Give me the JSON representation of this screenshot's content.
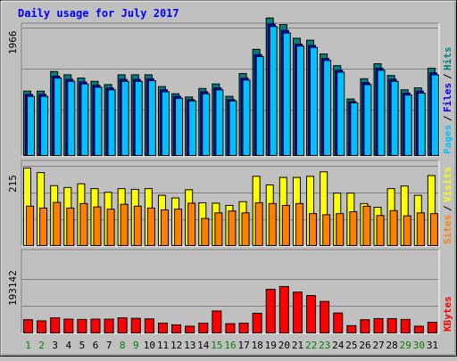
{
  "chart_data": {
    "type": "bar",
    "title": "Daily usage for July 2017",
    "days": [
      "1",
      "2",
      "3",
      "4",
      "5",
      "6",
      "7",
      "8",
      "9",
      "10",
      "11",
      "12",
      "13",
      "14",
      "15",
      "16",
      "17",
      "18",
      "19",
      "20",
      "21",
      "22",
      "23",
      "24",
      "25",
      "26",
      "27",
      "28",
      "29",
      "30",
      "31"
    ],
    "weekend_days": [
      "1",
      "2",
      "8",
      "9",
      "15",
      "16",
      "22",
      "23",
      "29",
      "30"
    ],
    "panels": [
      {
        "id": "hits",
        "scale_label": "1966",
        "scale_value": 1966,
        "legend": [
          {
            "text": "Pages",
            "color": "#00c0ff"
          },
          {
            "text": "Files",
            "color": "#0000ff"
          },
          {
            "text": "Hits",
            "color": "#008080"
          }
        ],
        "series": [
          {
            "name": "Hits",
            "color": "#008080",
            "values": [
              1000,
              1000,
              1300,
              1250,
              1200,
              1150,
              1100,
              1250,
              1250,
              1250,
              1070,
              960,
              910,
              1040,
              1110,
              920,
              1270,
              1640,
              2120,
              2020,
              1810,
              1780,
              1570,
              1390,
              880,
              1190,
              1420,
              1240,
              1020,
              1050,
              1350
            ]
          },
          {
            "name": "Files",
            "color": "#0000ff",
            "values": [
              950,
              950,
              1230,
              1180,
              1140,
              1090,
              1050,
              1180,
              1180,
              1190,
              1020,
              920,
              870,
              990,
              1050,
              870,
              1200,
              1560,
              2030,
              1930,
              1720,
              1700,
              1500,
              1320,
              840,
              1130,
              1350,
              1180,
              970,
              1000,
              1280
            ]
          },
          {
            "name": "Pages",
            "color": "#00c0ff",
            "values": [
              920,
              920,
              1200,
              1150,
              1110,
              1060,
              1020,
              1150,
              1150,
              1160,
              990,
              890,
              850,
              960,
              1020,
              850,
              1170,
              1530,
              1990,
              1890,
              1690,
              1670,
              1470,
              1290,
              820,
              1100,
              1320,
              1150,
              940,
              970,
              1250
            ]
          }
        ]
      },
      {
        "id": "visits",
        "scale_label": "215",
        "scale_value": 215,
        "legend": [
          {
            "text": "Sites",
            "color": "#ff8000"
          },
          {
            "text": "Visits",
            "color": "#ffff00"
          }
        ],
        "series": [
          {
            "name": "Visits",
            "color": "#ffff00",
            "values": [
              210,
              198,
              163,
              158,
              168,
              155,
              145,
              155,
              153,
              155,
              137,
              130,
              152,
              117,
              116,
              110,
              120,
              188,
              165,
              185,
              185,
              188,
              200,
              143,
              143,
              115,
              105,
              155,
              162,
              137,
              190
            ]
          },
          {
            "name": "Sites",
            "color": "#ff8000",
            "values": [
              108,
              103,
              118,
              103,
              115,
              106,
              100,
              113,
              108,
              103,
              98,
              100,
              116,
              75,
              90,
              95,
              90,
              117,
              115,
              110,
              115,
              88,
              85,
              88,
              93,
              108,
              83,
              96,
              82,
              90,
              88
            ]
          }
        ]
      },
      {
        "id": "kbytes",
        "scale_label": "193142",
        "scale_value": 193142,
        "legend": [
          {
            "text": "KBytes",
            "color": "#ff0000"
          }
        ],
        "series": [
          {
            "name": "KBytes",
            "color": "#ff0000",
            "values": [
              50000,
              46000,
              57000,
              52000,
              51000,
              52000,
              52000,
              57000,
              55000,
              53000,
              38000,
              32000,
              27000,
              38000,
              81000,
              36000,
              38000,
              73000,
              158000,
              168000,
              148000,
              136000,
              115000,
              74000,
              29000,
              50000,
              54000,
              54000,
              51000,
              27000,
              41000
            ]
          }
        ]
      }
    ]
  }
}
